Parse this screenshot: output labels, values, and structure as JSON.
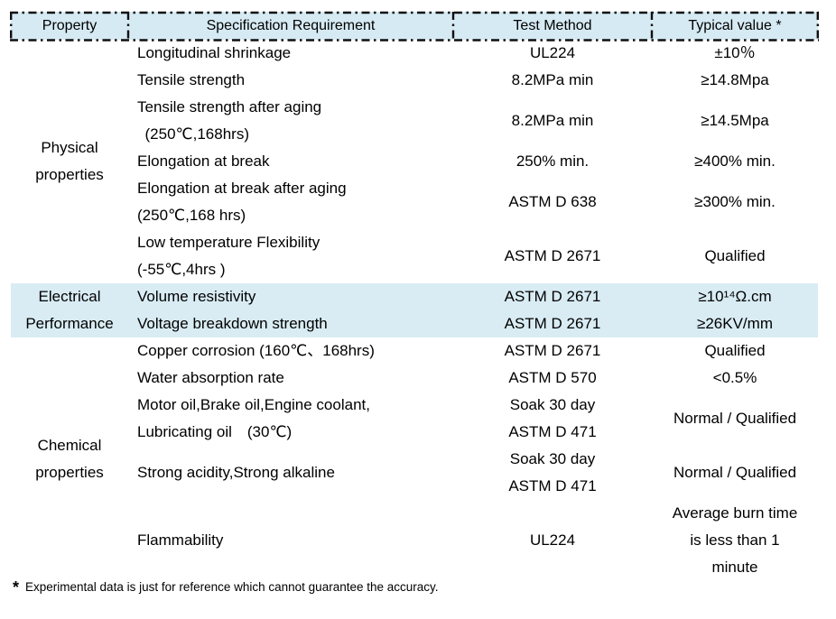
{
  "colors": {
    "header_bg": "#d6eaf3",
    "band_bg": "#d9ecf4",
    "border": "#101010"
  },
  "table": {
    "headers": [
      "Property",
      "Specification Requirement",
      "Test Method",
      "Typical value *"
    ],
    "groups": {
      "physical": "Physical\nproperties",
      "electrical": "Electrical\nPerformance",
      "chemical": "Chemical\nproperties"
    },
    "rows": [
      {
        "group": "physical",
        "spec": "Longitudinal shrinkage",
        "test": "UL224",
        "value": "±10％"
      },
      {
        "group": "physical",
        "spec": "Tensile strength",
        "test": "8.2MPa min",
        "value": "≥14.8Mpa"
      },
      {
        "group": "physical",
        "spec": "Tensile strength after aging\n (250℃,168hrs)",
        "test": "8.2MPa min",
        "value": "≥14.5Mpa"
      },
      {
        "group": "physical",
        "spec": "Elongation at break",
        "test": "250% min.",
        "value": "≥400% min."
      },
      {
        "group": "physical",
        "spec": "Elongation at break after aging\n(250℃,168 hrs)",
        "test": "ASTM D 638",
        "value": "≥300% min."
      },
      {
        "group": "physical",
        "spec": "Low temperature Flexibility\n(-55℃,4hrs )",
        "test": "ASTM D 2671",
        "value": "Qualified"
      },
      {
        "group": "electrical",
        "spec": "Volume resistivity",
        "test": "ASTM D 2671",
        "value": "≥10¹⁴Ω.cm"
      },
      {
        "group": "electrical",
        "spec": "Voltage breakdown strength",
        "test": "ASTM D 2671",
        "value": "≥26KV/mm"
      },
      {
        "group": "chemical",
        "spec": "Copper corrosion (160℃、168hrs)",
        "test": "ASTM D 2671",
        "value": "Qualified"
      },
      {
        "group": "chemical",
        "spec": "Water absorption rate",
        "test": "ASTM D 570",
        "value": "<0.5%"
      },
      {
        "group": "chemical",
        "spec": "Motor oil,Brake oil,Engine coolant,\nLubricating oil  (30℃)",
        "test": "Soak 30 day\nASTM D 471",
        "value": "Normal / Qualified"
      },
      {
        "group": "chemical",
        "spec": "Strong acidity,Strong alkaline",
        "test": "Soak 30 day\nASTM D 471",
        "value": "Normal / Qualified"
      },
      {
        "group": "chemical",
        "spec": "Flammability",
        "test": "UL224",
        "value": "Average burn time\nis less than 1\nminute"
      }
    ]
  },
  "footnote": {
    "marker": "*",
    "text": "Experimental data is just for reference which cannot guarantee the accuracy."
  }
}
